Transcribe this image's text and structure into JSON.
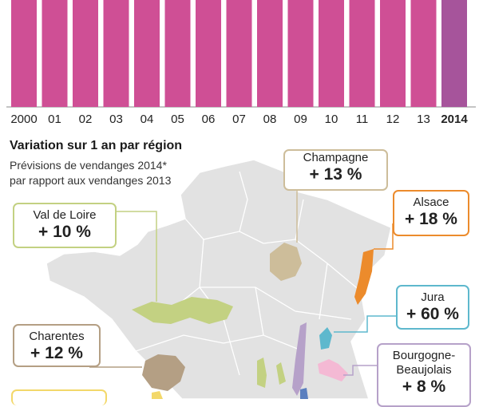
{
  "chart_data": {
    "type": "bar",
    "categories": [
      "2000",
      "01",
      "02",
      "03",
      "04",
      "05",
      "06",
      "07",
      "08",
      "09",
      "10",
      "11",
      "12",
      "13",
      "2014"
    ],
    "highlight_category": "2014",
    "colors": {
      "bar": "#cf4f95",
      "highlight": "#a6549b"
    }
  },
  "section": {
    "title": "Variation sur 1 an par région",
    "subtitle_line1": "Prévisions de vendanges 2014*",
    "subtitle_line2": "par rapport aux vendanges 2013"
  },
  "regions": [
    {
      "name": "Champagne",
      "value": "+ 13 %",
      "color": "#cdbd9a"
    },
    {
      "name": "Alsace",
      "value": "+ 18 %",
      "color": "#ec8b2c"
    },
    {
      "name": "Val de Loire",
      "value": "+ 10 %",
      "color": "#c3d182"
    },
    {
      "name": "Jura",
      "value": "+ 60 %",
      "color": "#5eb8cd"
    },
    {
      "name": "Charentes",
      "value": "+ 12 %",
      "color": "#b49f84"
    },
    {
      "name": "Bourgogne-",
      "name2": "Beaujolais",
      "value": "+ 8 %",
      "color": "#b6a1c9"
    }
  ]
}
